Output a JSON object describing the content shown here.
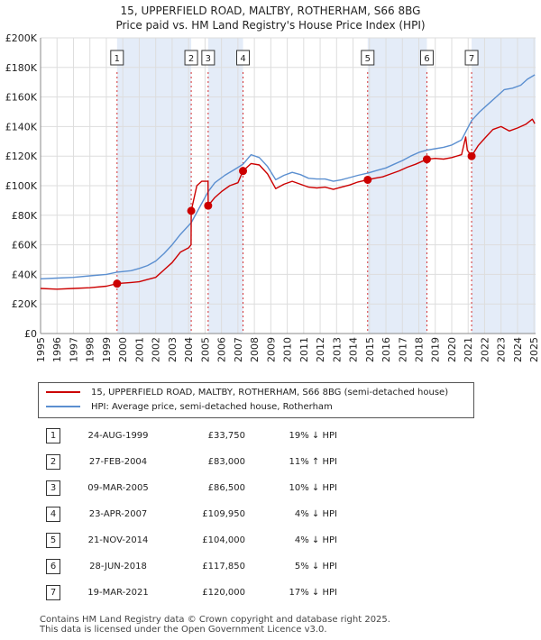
{
  "title_line1": "15, UPPERFIELD ROAD, MALTBY, ROTHERHAM, S66 8BG",
  "title_line2": "Price paid vs. HM Land Registry's House Price Index (HPI)",
  "legend": {
    "property": "15, UPPERFIELD ROAD, MALTBY, ROTHERHAM, S66 8BG (semi-detached house)",
    "hpi": "HPI: Average price, semi-detached house, Rotherham"
  },
  "colors": {
    "property": "#cc0000",
    "hpi": "#5b8fd0",
    "shade": "#dbe6f5",
    "grid": "#dddddd"
  },
  "sales": [
    {
      "n": "1",
      "date": "24-AUG-1999",
      "price": "£33,750",
      "hpi": "19% ↓ HPI"
    },
    {
      "n": "2",
      "date": "27-FEB-2004",
      "price": "£83,000",
      "hpi": "11% ↑ HPI"
    },
    {
      "n": "3",
      "date": "09-MAR-2005",
      "price": "£86,500",
      "hpi": "10% ↓ HPI"
    },
    {
      "n": "4",
      "date": "23-APR-2007",
      "price": "£109,950",
      "hpi": "4% ↓ HPI"
    },
    {
      "n": "5",
      "date": "21-NOV-2014",
      "price": "£104,000",
      "hpi": "4% ↓ HPI"
    },
    {
      "n": "6",
      "date": "28-JUN-2018",
      "price": "£117,850",
      "hpi": "5% ↓ HPI"
    },
    {
      "n": "7",
      "date": "19-MAR-2021",
      "price": "£120,000",
      "hpi": "17% ↓ HPI"
    }
  ],
  "footer": {
    "line1": "Contains HM Land Registry data © Crown copyright and database right 2025.",
    "line2": "This data is licensed under the Open Government Licence v3.0."
  },
  "chart_data": {
    "type": "line",
    "x_range": [
      1995.0,
      2025.1
    ],
    "ylim": [
      0,
      200000
    ],
    "y_ticks": [
      {
        "v": 0,
        "label": "£0"
      },
      {
        "v": 20000,
        "label": "£20K"
      },
      {
        "v": 40000,
        "label": "£40K"
      },
      {
        "v": 60000,
        "label": "£60K"
      },
      {
        "v": 80000,
        "label": "£80K"
      },
      {
        "v": 100000,
        "label": "£100K"
      },
      {
        "v": 120000,
        "label": "£120K"
      },
      {
        "v": 140000,
        "label": "£140K"
      },
      {
        "v": 160000,
        "label": "£160K"
      },
      {
        "v": 180000,
        "label": "£180K"
      },
      {
        "v": 200000,
        "label": "£200K"
      }
    ],
    "x_ticks": [
      "1995",
      "1996",
      "1997",
      "1998",
      "1999",
      "2000",
      "2001",
      "2002",
      "2003",
      "2004",
      "2005",
      "2006",
      "2007",
      "2008",
      "2009",
      "2010",
      "2011",
      "2012",
      "2013",
      "2014",
      "2015",
      "2016",
      "2017",
      "2018",
      "2019",
      "2020",
      "2021",
      "2022",
      "2023",
      "2024",
      "2025"
    ],
    "grid": true,
    "shaded_periods": [
      [
        1999.65,
        2004.16
      ],
      [
        2005.19,
        2007.31
      ],
      [
        2014.89,
        2018.49
      ],
      [
        2021.21,
        2025.1
      ]
    ],
    "series": [
      {
        "name": "15, UPPERFIELD ROAD, MALTBY, ROTHERHAM, S66 8BG (semi-detached house)",
        "color": "#cc0000",
        "points": [
          [
            1995.0,
            30500
          ],
          [
            1996.0,
            30000
          ],
          [
            1997.0,
            30500
          ],
          [
            1998.0,
            31000
          ],
          [
            1999.0,
            32000
          ],
          [
            1999.65,
            33750
          ],
          [
            2000.5,
            34500
          ],
          [
            2001.0,
            35000
          ],
          [
            2001.5,
            36500
          ],
          [
            2002.0,
            38000
          ],
          [
            2002.5,
            43000
          ],
          [
            2003.0,
            48000
          ],
          [
            2003.5,
            55000
          ],
          [
            2004.0,
            58000
          ],
          [
            2004.15,
            60000
          ],
          [
            2004.16,
            83000
          ],
          [
            2004.5,
            100000
          ],
          [
            2004.8,
            103000
          ],
          [
            2005.18,
            103000
          ],
          [
            2005.19,
            86500
          ],
          [
            2005.6,
            92000
          ],
          [
            2006.0,
            96000
          ],
          [
            2006.5,
            100000
          ],
          [
            2007.0,
            102000
          ],
          [
            2007.31,
            109950
          ],
          [
            2007.8,
            115000
          ],
          [
            2008.3,
            114000
          ],
          [
            2008.8,
            108000
          ],
          [
            2009.3,
            98000
          ],
          [
            2009.8,
            101000
          ],
          [
            2010.3,
            103000
          ],
          [
            2010.8,
            101000
          ],
          [
            2011.3,
            99000
          ],
          [
            2011.8,
            98500
          ],
          [
            2012.3,
            99000
          ],
          [
            2012.8,
            97500
          ],
          [
            2013.3,
            99000
          ],
          [
            2013.8,
            100500
          ],
          [
            2014.3,
            102500
          ],
          [
            2014.89,
            104000
          ],
          [
            2015.3,
            105000
          ],
          [
            2015.8,
            106000
          ],
          [
            2016.3,
            108000
          ],
          [
            2016.8,
            110000
          ],
          [
            2017.3,
            112500
          ],
          [
            2017.8,
            114500
          ],
          [
            2018.49,
            117850
          ],
          [
            2019.0,
            118500
          ],
          [
            2019.5,
            118000
          ],
          [
            2020.0,
            119000
          ],
          [
            2020.6,
            121000
          ],
          [
            2020.85,
            133000
          ],
          [
            2020.95,
            124000
          ],
          [
            2021.21,
            120000
          ],
          [
            2021.6,
            127000
          ],
          [
            2022.0,
            132000
          ],
          [
            2022.5,
            138000
          ],
          [
            2023.0,
            140000
          ],
          [
            2023.5,
            137000
          ],
          [
            2024.0,
            139000
          ],
          [
            2024.5,
            141500
          ],
          [
            2024.9,
            145000
          ],
          [
            2025.05,
            142000
          ]
        ]
      },
      {
        "name": "HPI: Average price, semi-detached house, Rotherham",
        "color": "#5b8fd0",
        "points": [
          [
            1995.0,
            37000
          ],
          [
            1996.0,
            37500
          ],
          [
            1997.0,
            38000
          ],
          [
            1998.0,
            39000
          ],
          [
            1999.0,
            40000
          ],
          [
            1999.65,
            41500
          ],
          [
            2000.5,
            42500
          ],
          [
            2001.0,
            44000
          ],
          [
            2001.5,
            46000
          ],
          [
            2002.0,
            49000
          ],
          [
            2002.5,
            54000
          ],
          [
            2003.0,
            60000
          ],
          [
            2003.5,
            67000
          ],
          [
            2004.16,
            75000
          ],
          [
            2004.7,
            86000
          ],
          [
            2005.19,
            96000
          ],
          [
            2005.6,
            102000
          ],
          [
            2006.2,
            107000
          ],
          [
            2006.8,
            111000
          ],
          [
            2007.31,
            114500
          ],
          [
            2007.8,
            121000
          ],
          [
            2008.3,
            119000
          ],
          [
            2008.8,
            113000
          ],
          [
            2009.3,
            104000
          ],
          [
            2009.8,
            107000
          ],
          [
            2010.3,
            109000
          ],
          [
            2010.8,
            107500
          ],
          [
            2011.3,
            105000
          ],
          [
            2011.8,
            104500
          ],
          [
            2012.3,
            104500
          ],
          [
            2012.8,
            103000
          ],
          [
            2013.3,
            104000
          ],
          [
            2013.8,
            105500
          ],
          [
            2014.3,
            107000
          ],
          [
            2014.89,
            108500
          ],
          [
            2015.5,
            110500
          ],
          [
            2016.0,
            112000
          ],
          [
            2016.5,
            114500
          ],
          [
            2017.0,
            117000
          ],
          [
            2017.5,
            120000
          ],
          [
            2018.0,
            122500
          ],
          [
            2018.49,
            124000
          ],
          [
            2019.0,
            125000
          ],
          [
            2019.5,
            126000
          ],
          [
            2020.0,
            127500
          ],
          [
            2020.6,
            131000
          ],
          [
            2021.21,
            144000
          ],
          [
            2021.7,
            150000
          ],
          [
            2022.2,
            155000
          ],
          [
            2022.7,
            160000
          ],
          [
            2023.2,
            165000
          ],
          [
            2023.7,
            166000
          ],
          [
            2024.2,
            168000
          ],
          [
            2024.6,
            172000
          ],
          [
            2025.05,
            175000
          ]
        ]
      }
    ],
    "markers": [
      {
        "label": "1",
        "x": 1999.65,
        "y": 33750
      },
      {
        "label": "2",
        "x": 2004.16,
        "y": 83000
      },
      {
        "label": "3",
        "x": 2005.19,
        "y": 86500
      },
      {
        "label": "4",
        "x": 2007.31,
        "y": 109950
      },
      {
        "label": "5",
        "x": 2014.89,
        "y": 104000
      },
      {
        "label": "6",
        "x": 2018.49,
        "y": 117850
      },
      {
        "label": "7",
        "x": 2021.21,
        "y": 120000
      }
    ]
  }
}
